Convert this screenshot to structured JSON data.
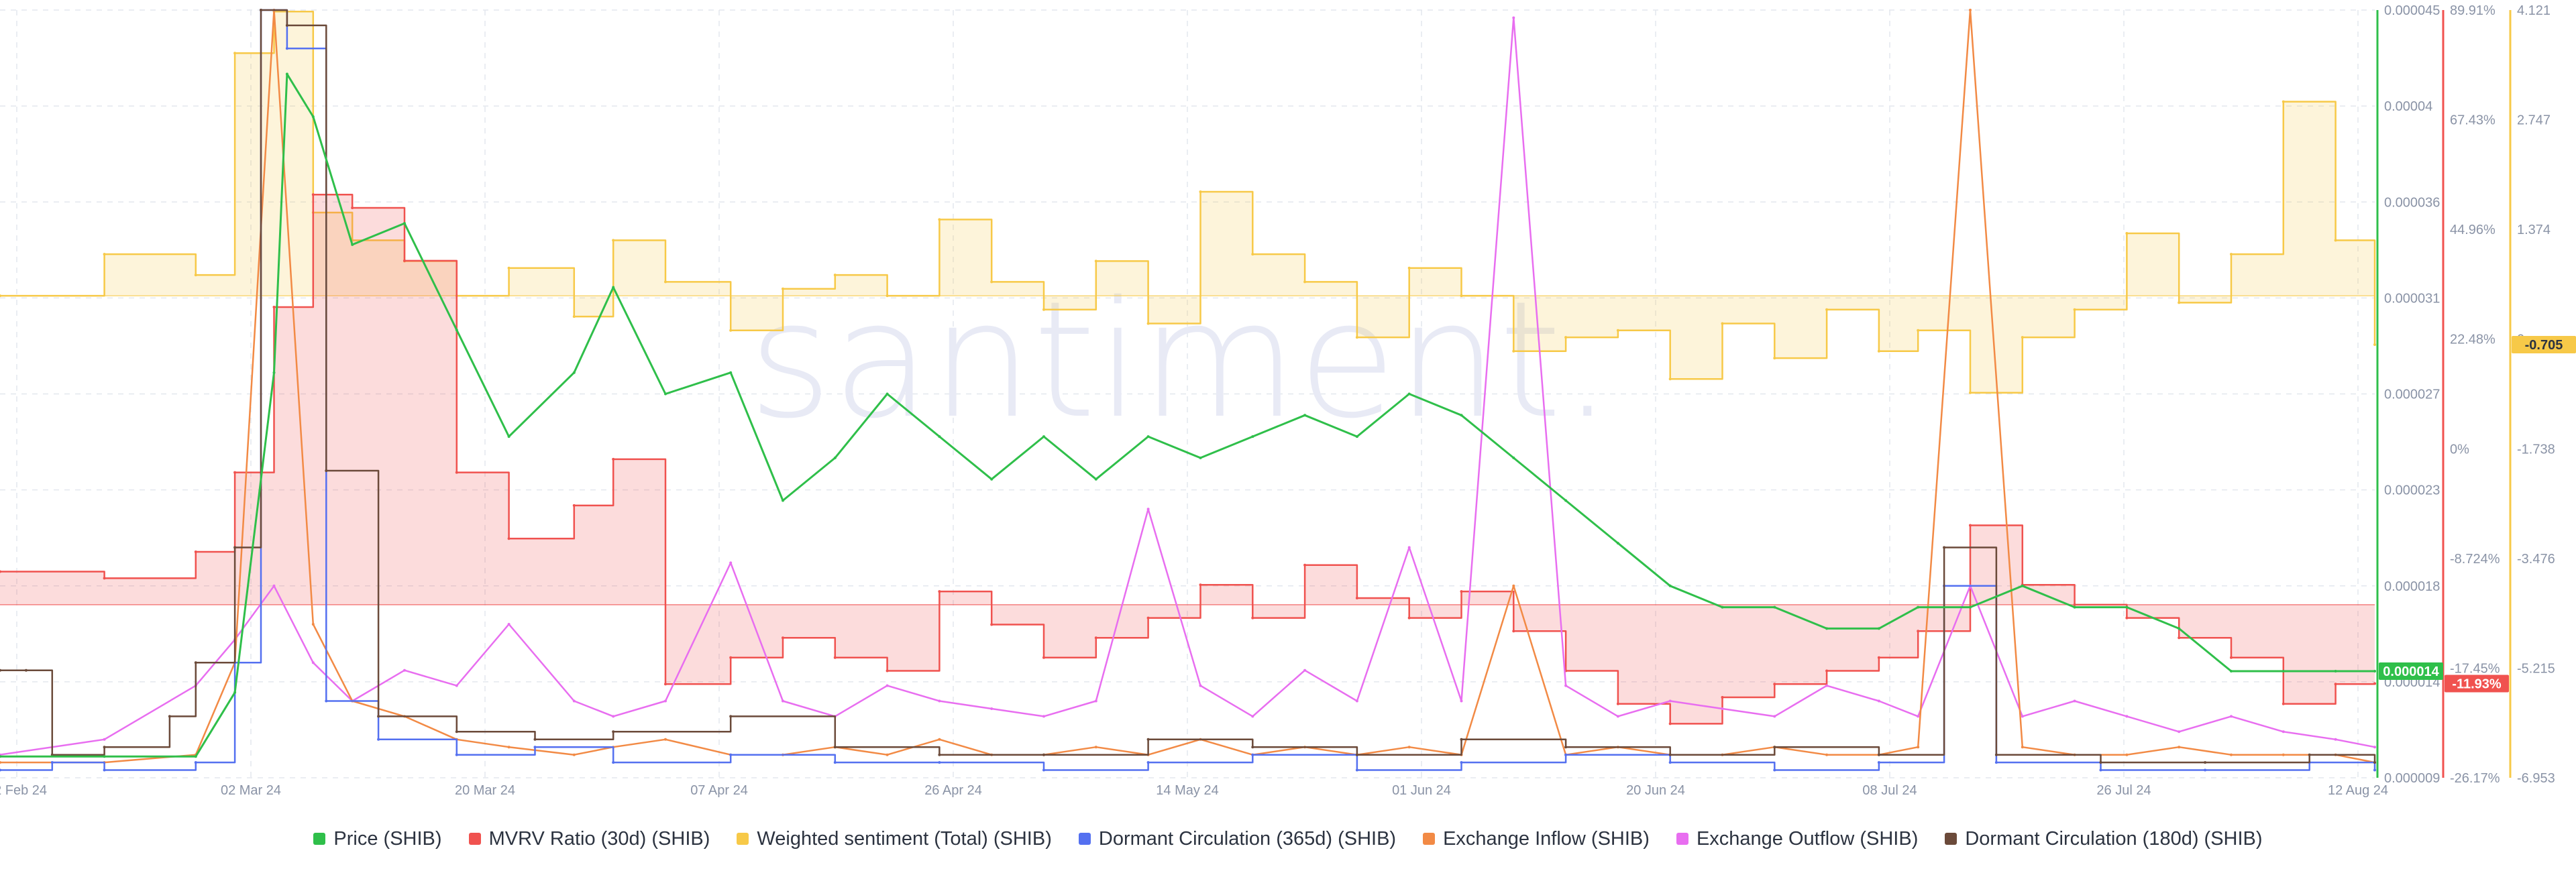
{
  "watermark": "santiment.",
  "colors": {
    "price": "#2fbf4a",
    "mvrv": "#f0524f",
    "sentiment": "#f7c948",
    "dormant365": "#5470f0",
    "inflow": "#f28a45",
    "outflow": "#e86ef0",
    "dormant180": "#6b4a3a",
    "grid": "#e3e7ee"
  },
  "legend": [
    {
      "name": "Price (SHIB)",
      "color": "#2fbf4a"
    },
    {
      "name": "MVRV Ratio (30d) (SHIB)",
      "color": "#f0524f"
    },
    {
      "name": "Weighted sentiment (Total) (SHIB)",
      "color": "#f7c948"
    },
    {
      "name": "Dormant Circulation (365d) (SHIB)",
      "color": "#5470f0"
    },
    {
      "name": "Exchange Inflow (SHIB)",
      "color": "#f28a45"
    },
    {
      "name": "Exchange Outflow (SHIB)",
      "color": "#e86ef0"
    },
    {
      "name": "Dormant Circulation (180d) (SHIB)",
      "color": "#6b4a3a"
    }
  ],
  "axes": {
    "price_ticks": [
      "0.000045",
      "0.00004",
      "0.000036",
      "0.000031",
      "0.000027",
      "0.000023",
      "0.000018",
      "0.000014",
      "0.000009"
    ],
    "mvrv_ticks": [
      "89.91%",
      "67.43%",
      "44.96%",
      "22.48%",
      "0%",
      "-8.724%",
      "-17.45%",
      "-26.17%"
    ],
    "sentiment_ticks": [
      "4.121",
      "2.747",
      "1.374",
      "0",
      "-1.738",
      "-3.476",
      "-5.215",
      "-6.953"
    ],
    "x_ticks": [
      "12 Feb 24",
      "02 Mar 24",
      "20 Mar 24",
      "07 Apr 24",
      "26 Apr 24",
      "14 May 24",
      "01 Jun 24",
      "20 Jun 24",
      "08 Jul 24",
      "26 Jul 24",
      "12 Aug 24"
    ]
  },
  "badges": {
    "price": "0.000014",
    "mvrv": "-11.93%",
    "sentiment": "-0.705"
  },
  "chart_data": {
    "type": "line",
    "x_range": [
      "2024-02-12",
      "2024-08-12"
    ],
    "grid": true,
    "legend_placement": "bottom",
    "series": [
      {
        "name": "Price (SHIB)",
        "axis": "price",
        "ylim": [
          9e-06,
          4.5e-05
        ],
        "x": [
          "2024-02-12",
          "2024-02-20",
          "2024-02-27",
          "2024-03-01",
          "2024-03-04",
          "2024-03-05",
          "2024-03-07",
          "2024-03-10",
          "2024-03-14",
          "2024-03-18",
          "2024-03-22",
          "2024-03-27",
          "2024-03-30",
          "2024-04-03",
          "2024-04-08",
          "2024-04-12",
          "2024-04-16",
          "2024-04-20",
          "2024-04-24",
          "2024-04-28",
          "2024-05-02",
          "2024-05-06",
          "2024-05-10",
          "2024-05-14",
          "2024-05-18",
          "2024-05-22",
          "2024-05-26",
          "2024-05-30",
          "2024-06-03",
          "2024-06-07",
          "2024-06-11",
          "2024-06-15",
          "2024-06-19",
          "2024-06-23",
          "2024-06-27",
          "2024-07-01",
          "2024-07-05",
          "2024-07-08",
          "2024-07-12",
          "2024-07-16",
          "2024-07-20",
          "2024-07-24",
          "2024-07-28",
          "2024-08-01",
          "2024-08-05",
          "2024-08-09",
          "2024-08-12"
        ],
        "values": [
          1e-05,
          1e-05,
          1e-05,
          1.3e-05,
          2.8e-05,
          4.2e-05,
          4e-05,
          3.4e-05,
          3.5e-05,
          3e-05,
          2.5e-05,
          2.8e-05,
          3.2e-05,
          2.7e-05,
          2.8e-05,
          2.2e-05,
          2.4e-05,
          2.7e-05,
          2.5e-05,
          2.3e-05,
          2.5e-05,
          2.3e-05,
          2.5e-05,
          2.4e-05,
          2.5e-05,
          2.6e-05,
          2.5e-05,
          2.7e-05,
          2.6e-05,
          2.4e-05,
          2.2e-05,
          2e-05,
          1.8e-05,
          1.7e-05,
          1.7e-05,
          1.6e-05,
          1.6e-05,
          1.7e-05,
          1.7e-05,
          1.8e-05,
          1.7e-05,
          1.7e-05,
          1.6e-05,
          1.4e-05,
          1.4e-05,
          1.4e-05,
          1.4e-05
        ]
      },
      {
        "name": "MVRV Ratio (30d) (SHIB)",
        "axis": "mvrv",
        "ylim": [
          -26.17,
          89.91
        ],
        "x": [
          "2024-02-12",
          "2024-02-20",
          "2024-02-27",
          "2024-03-01",
          "2024-03-04",
          "2024-03-07",
          "2024-03-10",
          "2024-03-14",
          "2024-03-18",
          "2024-03-22",
          "2024-03-27",
          "2024-03-30",
          "2024-04-03",
          "2024-04-08",
          "2024-04-12",
          "2024-04-16",
          "2024-04-20",
          "2024-04-24",
          "2024-04-28",
          "2024-05-02",
          "2024-05-06",
          "2024-05-10",
          "2024-05-14",
          "2024-05-18",
          "2024-05-22",
          "2024-05-26",
          "2024-05-30",
          "2024-06-03",
          "2024-06-07",
          "2024-06-11",
          "2024-06-15",
          "2024-06-19",
          "2024-06-23",
          "2024-06-27",
          "2024-07-01",
          "2024-07-05",
          "2024-07-08",
          "2024-07-12",
          "2024-07-16",
          "2024-07-20",
          "2024-07-24",
          "2024-07-28",
          "2024-08-01",
          "2024-08-05",
          "2024-08-09",
          "2024-08-12"
        ],
        "values": [
          5,
          4,
          8,
          20,
          45,
          62,
          60,
          52,
          20,
          10,
          15,
          22,
          -12,
          -8,
          -5,
          -8,
          -10,
          2,
          -3,
          -8,
          -5,
          -2,
          3,
          -2,
          6,
          1,
          -2,
          2,
          -4,
          -10,
          -15,
          -18,
          -14,
          -12,
          -10,
          -8,
          -4,
          12,
          3,
          0,
          -2,
          -5,
          -8,
          -15,
          -12,
          -11.93
        ]
      },
      {
        "name": "Weighted sentiment (Total) (SHIB)",
        "axis": "sentiment",
        "ylim": [
          -6.953,
          4.121
        ],
        "x": [
          "2024-02-12",
          "2024-02-20",
          "2024-02-27",
          "2024-03-01",
          "2024-03-04",
          "2024-03-07",
          "2024-03-10",
          "2024-03-14",
          "2024-03-18",
          "2024-03-22",
          "2024-03-27",
          "2024-03-30",
          "2024-04-03",
          "2024-04-08",
          "2024-04-12",
          "2024-04-16",
          "2024-04-20",
          "2024-04-24",
          "2024-04-28",
          "2024-05-02",
          "2024-05-06",
          "2024-05-10",
          "2024-05-14",
          "2024-05-18",
          "2024-05-22",
          "2024-05-26",
          "2024-05-30",
          "2024-06-03",
          "2024-06-07",
          "2024-06-11",
          "2024-06-15",
          "2024-06-19",
          "2024-06-23",
          "2024-06-27",
          "2024-07-01",
          "2024-07-05",
          "2024-07-08",
          "2024-07-12",
          "2024-07-16",
          "2024-07-20",
          "2024-07-24",
          "2024-07-28",
          "2024-08-01",
          "2024-08-05",
          "2024-08-09",
          "2024-08-12"
        ],
        "values": [
          0,
          0.6,
          0.3,
          3.5,
          4.1,
          1.2,
          0.8,
          0.5,
          0,
          0.4,
          -0.3,
          0.8,
          0.2,
          -0.5,
          0.1,
          0.3,
          0,
          1.1,
          0.2,
          -0.2,
          0.5,
          -0.4,
          1.5,
          0.6,
          0.2,
          -0.6,
          0.4,
          0,
          -0.8,
          -0.6,
          -0.5,
          -1.2,
          -0.4,
          -0.9,
          -0.2,
          -0.8,
          -0.5,
          -1.4,
          -0.6,
          -0.2,
          0.9,
          -0.1,
          0.6,
          2.8,
          0.8,
          -0.705
        ]
      },
      {
        "name": "Exchange Inflow (SHIB)",
        "axis": "hidden",
        "ylim": [
          0,
          100
        ],
        "x": [
          "2024-02-12",
          "2024-02-20",
          "2024-02-27",
          "2024-03-01",
          "2024-03-04",
          "2024-03-07",
          "2024-03-10",
          "2024-03-14",
          "2024-03-18",
          "2024-03-22",
          "2024-03-27",
          "2024-03-30",
          "2024-04-03",
          "2024-04-08",
          "2024-04-12",
          "2024-04-16",
          "2024-04-20",
          "2024-04-24",
          "2024-04-28",
          "2024-05-02",
          "2024-05-06",
          "2024-05-10",
          "2024-05-14",
          "2024-05-18",
          "2024-05-22",
          "2024-05-26",
          "2024-05-30",
          "2024-06-03",
          "2024-06-07",
          "2024-06-11",
          "2024-06-15",
          "2024-06-19",
          "2024-06-23",
          "2024-06-27",
          "2024-07-01",
          "2024-07-05",
          "2024-07-08",
          "2024-07-12",
          "2024-07-16",
          "2024-07-20",
          "2024-07-24",
          "2024-07-28",
          "2024-08-01",
          "2024-08-05",
          "2024-08-09",
          "2024-08-12"
        ],
        "values": [
          2,
          2,
          3,
          15,
          100,
          20,
          10,
          8,
          5,
          4,
          3,
          4,
          5,
          3,
          3,
          4,
          3,
          5,
          3,
          3,
          4,
          3,
          5,
          3,
          4,
          3,
          4,
          3,
          25,
          3,
          4,
          3,
          3,
          4,
          3,
          3,
          4,
          100,
          4,
          3,
          3,
          4,
          3,
          3,
          3,
          2
        ]
      },
      {
        "name": "Exchange Outflow (SHIB)",
        "axis": "hidden",
        "ylim": [
          0,
          100
        ],
        "x": [
          "2024-02-12",
          "2024-02-20",
          "2024-02-27",
          "2024-03-01",
          "2024-03-04",
          "2024-03-07",
          "2024-03-10",
          "2024-03-14",
          "2024-03-18",
          "2024-03-22",
          "2024-03-27",
          "2024-03-30",
          "2024-04-03",
          "2024-04-08",
          "2024-04-12",
          "2024-04-16",
          "2024-04-20",
          "2024-04-24",
          "2024-04-28",
          "2024-05-02",
          "2024-05-06",
          "2024-05-10",
          "2024-05-14",
          "2024-05-18",
          "2024-05-22",
          "2024-05-26",
          "2024-05-30",
          "2024-06-03",
          "2024-06-07",
          "2024-06-11",
          "2024-06-15",
          "2024-06-19",
          "2024-06-23",
          "2024-06-27",
          "2024-07-01",
          "2024-07-05",
          "2024-07-08",
          "2024-07-12",
          "2024-07-16",
          "2024-07-20",
          "2024-07-24",
          "2024-07-28",
          "2024-08-01",
          "2024-08-05",
          "2024-08-09",
          "2024-08-12"
        ],
        "values": [
          3,
          5,
          12,
          18,
          25,
          15,
          10,
          14,
          12,
          20,
          10,
          8,
          10,
          28,
          10,
          8,
          12,
          10,
          9,
          8,
          10,
          35,
          12,
          8,
          14,
          10,
          30,
          10,
          99,
          12,
          8,
          10,
          9,
          8,
          12,
          10,
          8,
          25,
          8,
          10,
          8,
          6,
          8,
          6,
          5,
          4
        ]
      },
      {
        "name": "Dormant Circulation (365d) (SHIB)",
        "axis": "hidden",
        "ylim": [
          0,
          100
        ],
        "x": [
          "2024-02-12",
          "2024-02-16",
          "2024-02-20",
          "2024-02-27",
          "2024-03-01",
          "2024-03-03",
          "2024-03-05",
          "2024-03-08",
          "2024-03-12",
          "2024-03-18",
          "2024-03-24",
          "2024-03-30",
          "2024-04-08",
          "2024-04-16",
          "2024-04-24",
          "2024-05-02",
          "2024-05-10",
          "2024-05-18",
          "2024-05-26",
          "2024-06-03",
          "2024-06-11",
          "2024-06-19",
          "2024-06-27",
          "2024-07-05",
          "2024-07-10",
          "2024-07-14",
          "2024-07-22",
          "2024-07-30",
          "2024-08-07",
          "2024-08-12"
        ],
        "values": [
          1,
          2,
          1,
          2,
          15,
          100,
          95,
          10,
          5,
          3,
          4,
          2,
          3,
          2,
          2,
          1,
          2,
          3,
          1,
          2,
          3,
          2,
          1,
          2,
          25,
          2,
          1,
          1,
          2,
          1
        ]
      },
      {
        "name": "Dormant Circulation (180d) (SHIB)",
        "axis": "hidden",
        "ylim": [
          0,
          100
        ],
        "x": [
          "2024-02-12",
          "2024-02-14",
          "2024-02-16",
          "2024-02-20",
          "2024-02-25",
          "2024-02-27",
          "2024-03-01",
          "2024-03-03",
          "2024-03-05",
          "2024-03-08",
          "2024-03-12",
          "2024-03-18",
          "2024-03-24",
          "2024-03-30",
          "2024-04-08",
          "2024-04-16",
          "2024-04-24",
          "2024-05-02",
          "2024-05-10",
          "2024-05-18",
          "2024-05-26",
          "2024-06-03",
          "2024-06-11",
          "2024-06-19",
          "2024-06-27",
          "2024-07-05",
          "2024-07-10",
          "2024-07-14",
          "2024-07-22",
          "2024-07-30",
          "2024-08-07",
          "2024-08-12"
        ],
        "values": [
          14,
          14,
          3,
          4,
          8,
          15,
          30,
          100,
          98,
          40,
          8,
          6,
          5,
          6,
          8,
          4,
          3,
          3,
          5,
          4,
          3,
          5,
          4,
          3,
          4,
          3,
          30,
          3,
          2,
          2,
          3,
          2
        ]
      }
    ]
  }
}
